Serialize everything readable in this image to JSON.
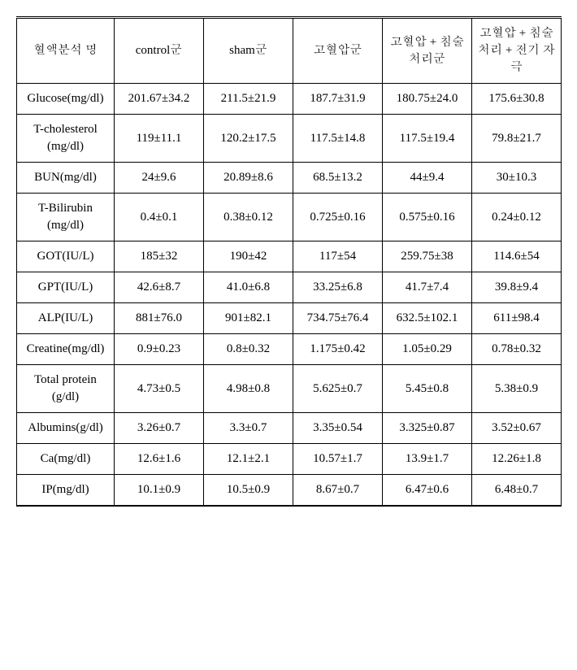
{
  "table": {
    "columns": [
      "혈액분석 명",
      "control군",
      "sham군",
      "고혈압군",
      "고혈압 + 침술처리군",
      "고혈압 + 침술처리 + 전기 자극"
    ],
    "rows": [
      {
        "label": "Glucose(mg/dl)",
        "values": [
          "201.67±34.2",
          "211.5±21.9",
          "187.7±31.9",
          "180.75±24.0",
          "175.6±30.8"
        ]
      },
      {
        "label": "T-cholesterol (mg/dl)",
        "values": [
          "119±11.1",
          "120.2±17.5",
          "117.5±14.8",
          "117.5±19.4",
          "79.8±21.7"
        ]
      },
      {
        "label": "BUN(mg/dl)",
        "values": [
          "24±9.6",
          "20.89±8.6",
          "68.5±13.2",
          "44±9.4",
          "30±10.3"
        ]
      },
      {
        "label": "T-Bilirubin (mg/dl)",
        "values": [
          "0.4±0.1",
          "0.38±0.12",
          "0.725±0.16",
          "0.575±0.16",
          "0.24±0.12"
        ]
      },
      {
        "label": "GOT(IU/L)",
        "values": [
          "185±32",
          "190±42",
          "117±54",
          "259.75±38",
          "114.6±54"
        ]
      },
      {
        "label": "GPT(IU/L)",
        "values": [
          "42.6±8.7",
          "41.0±6.8",
          "33.25±6.8",
          "41.7±7.4",
          "39.8±9.4"
        ]
      },
      {
        "label": "ALP(IU/L)",
        "values": [
          "881±76.0",
          "901±82.1",
          "734.75±76.4",
          "632.5±102.1",
          "611±98.4"
        ]
      },
      {
        "label": "Creatine(mg/dl)",
        "values": [
          "0.9±0.23",
          "0.8±0.32",
          "1.175±0.42",
          "1.05±0.29",
          "0.78±0.32"
        ]
      },
      {
        "label": "Total protein (g/dl)",
        "values": [
          "4.73±0.5",
          "4.98±0.8",
          "5.625±0.7",
          "5.45±0.8",
          "5.38±0.9"
        ]
      },
      {
        "label": "Albumins(g/dl)",
        "values": [
          "3.26±0.7",
          "3.3±0.7",
          "3.35±0.54",
          "3.325±0.87",
          "3.52±0.67"
        ]
      },
      {
        "label": "Ca(mg/dl)",
        "values": [
          "12.6±1.6",
          "12.1±2.1",
          "10.57±1.7",
          "13.9±1.7",
          "12.26±1.8"
        ]
      },
      {
        "label": "IP(mg/dl)",
        "values": [
          "10.1±0.9",
          "10.5±0.9",
          "8.67±0.7",
          "6.47±0.6",
          "6.48±0.7"
        ]
      }
    ],
    "styling": {
      "border_color": "#000000",
      "background_color": "#ffffff",
      "text_color": "#000000",
      "font_size_pt": 11,
      "header_border_top": "double",
      "bottom_border_weight": 2
    }
  }
}
